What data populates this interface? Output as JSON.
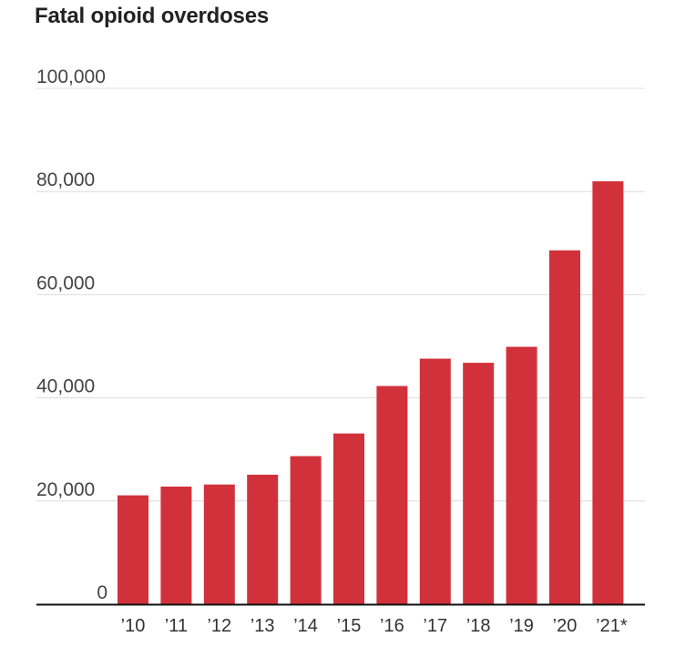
{
  "chart_data": {
    "type": "bar",
    "title": "Fatal opioid overdoses",
    "xlabel": "",
    "ylabel": "",
    "categories": [
      "’10",
      "’11",
      "’12",
      "’13",
      "’14",
      "’15",
      "’16",
      "’17",
      "’18",
      "’19",
      "’20",
      "’21*"
    ],
    "values": [
      21100,
      22800,
      23200,
      25100,
      28700,
      33100,
      42300,
      47600,
      46800,
      49900,
      68600,
      82000
    ],
    "ylim": [
      0,
      100000
    ],
    "yticks": [
      0,
      20000,
      40000,
      60000,
      80000,
      100000
    ],
    "ytick_labels": [
      "0",
      "20,000",
      "40,000",
      "60,000",
      "80,000",
      "100,000"
    ],
    "grid": true,
    "bar_color": "#d1313b"
  }
}
